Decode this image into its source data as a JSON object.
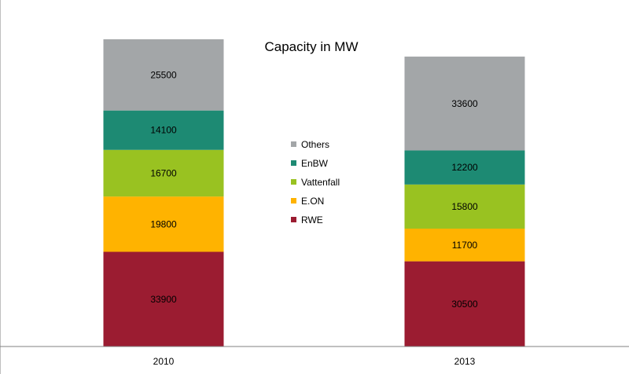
{
  "chart_data": {
    "type": "bar",
    "stacked": true,
    "title": "Capacity in MW",
    "xlabel": "",
    "ylabel": "",
    "categories": [
      "2010",
      "2013"
    ],
    "series": [
      {
        "name": "RWE",
        "color": "#9b1c31",
        "values": [
          33900,
          30500
        ]
      },
      {
        "name": "E.ON",
        "color": "#ffb300",
        "values": [
          19800,
          11700
        ]
      },
      {
        "name": "Vattenfall",
        "color": "#99c221",
        "values": [
          16700,
          15800
        ]
      },
      {
        "name": "EnBW",
        "color": "#1d8a73",
        "values": [
          14100,
          12200
        ]
      },
      {
        "name": "Others",
        "color": "#a3a6a8",
        "values": [
          25500,
          33600
        ]
      }
    ],
    "legend_order": [
      "Others",
      "EnBW",
      "Vattenfall",
      "E.ON",
      "RWE"
    ],
    "legend_position": "center",
    "ylim": [
      0,
      110000
    ],
    "grid": false,
    "show_y_axis": false,
    "data_labels": true
  }
}
